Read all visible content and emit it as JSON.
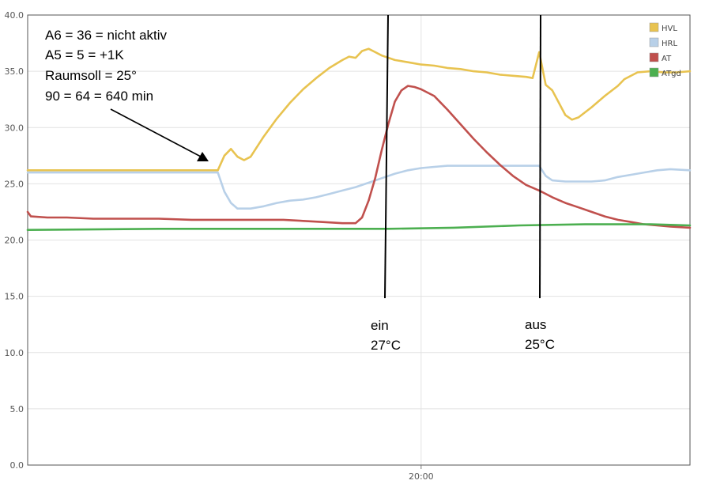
{
  "chart_data": {
    "type": "line",
    "title": "",
    "xlabel": "",
    "ylabel": "",
    "ylim": [
      0,
      40
    ],
    "yticks": [
      "0.0",
      "5.0",
      "10.0",
      "15.0",
      "20.0",
      "25.0",
      "30.0",
      "35.0",
      "40.0"
    ],
    "xticks": [
      {
        "label": "20:00",
        "t": 0
      }
    ],
    "time_unit": "minutes relative to 20:00",
    "xlim": [
      -120,
      82
    ],
    "grid": true,
    "legend_position": "top-right",
    "series": [
      {
        "name": "HVL",
        "color": "#e8c350",
        "points": [
          [
            -120,
            26.2
          ],
          [
            -62,
            26.2
          ],
          [
            -60,
            27.5
          ],
          [
            -58,
            28.1
          ],
          [
            -56,
            27.4
          ],
          [
            -54,
            27.1
          ],
          [
            -52,
            27.4
          ],
          [
            -48,
            29.2
          ],
          [
            -44,
            30.8
          ],
          [
            -40,
            32.2
          ],
          [
            -36,
            33.4
          ],
          [
            -32,
            34.4
          ],
          [
            -28,
            35.3
          ],
          [
            -24,
            36.0
          ],
          [
            -22,
            36.3
          ],
          [
            -20,
            36.2
          ],
          [
            -18,
            36.8
          ],
          [
            -16,
            37.0
          ],
          [
            -14,
            36.7
          ],
          [
            -12,
            36.4
          ],
          [
            -8,
            36.0
          ],
          [
            -4,
            35.8
          ],
          [
            0,
            35.6
          ],
          [
            4,
            35.5
          ],
          [
            8,
            35.3
          ],
          [
            12,
            35.2
          ],
          [
            16,
            35.0
          ],
          [
            20,
            34.9
          ],
          [
            24,
            34.7
          ],
          [
            28,
            34.6
          ],
          [
            32,
            34.5
          ],
          [
            34,
            34.4
          ],
          [
            36,
            36.7
          ],
          [
            38,
            33.8
          ],
          [
            40,
            33.3
          ],
          [
            44,
            31.1
          ],
          [
            46,
            30.7
          ],
          [
            48,
            30.9
          ],
          [
            52,
            31.8
          ],
          [
            56,
            32.8
          ],
          [
            60,
            33.7
          ],
          [
            62,
            34.3
          ],
          [
            66,
            34.9
          ],
          [
            70,
            35.0
          ],
          [
            74,
            34.9
          ],
          [
            78,
            34.9
          ],
          [
            82,
            35.0
          ]
        ]
      },
      {
        "name": "HRL",
        "color": "#b8d0e8",
        "points": [
          [
            -120,
            26.0
          ],
          [
            -62,
            26.0
          ],
          [
            -60,
            24.3
          ],
          [
            -58,
            23.3
          ],
          [
            -56,
            22.8
          ],
          [
            -52,
            22.8
          ],
          [
            -48,
            23.0
          ],
          [
            -44,
            23.3
          ],
          [
            -40,
            23.5
          ],
          [
            -36,
            23.6
          ],
          [
            -32,
            23.8
          ],
          [
            -28,
            24.1
          ],
          [
            -24,
            24.4
          ],
          [
            -20,
            24.7
          ],
          [
            -16,
            25.1
          ],
          [
            -12,
            25.5
          ],
          [
            -8,
            25.9
          ],
          [
            -4,
            26.2
          ],
          [
            0,
            26.4
          ],
          [
            4,
            26.5
          ],
          [
            8,
            26.6
          ],
          [
            36,
            26.6
          ],
          [
            38,
            25.7
          ],
          [
            40,
            25.3
          ],
          [
            44,
            25.2
          ],
          [
            48,
            25.2
          ],
          [
            52,
            25.2
          ],
          [
            56,
            25.3
          ],
          [
            60,
            25.6
          ],
          [
            64,
            25.8
          ],
          [
            68,
            26.0
          ],
          [
            72,
            26.2
          ],
          [
            76,
            26.3
          ],
          [
            82,
            26.2
          ]
        ]
      },
      {
        "name": "AT",
        "color": "#c0504d",
        "points": [
          [
            -120,
            22.5
          ],
          [
            -119,
            22.1
          ],
          [
            -114,
            22.0
          ],
          [
            -108,
            22.0
          ],
          [
            -100,
            21.9
          ],
          [
            -90,
            21.9
          ],
          [
            -80,
            21.9
          ],
          [
            -70,
            21.8
          ],
          [
            -60,
            21.8
          ],
          [
            -50,
            21.8
          ],
          [
            -42,
            21.8
          ],
          [
            -36,
            21.7
          ],
          [
            -30,
            21.6
          ],
          [
            -24,
            21.5
          ],
          [
            -20,
            21.5
          ],
          [
            -18,
            22.0
          ],
          [
            -16,
            23.5
          ],
          [
            -14,
            25.5
          ],
          [
            -12,
            28.0
          ],
          [
            -10,
            30.3
          ],
          [
            -8,
            32.3
          ],
          [
            -6,
            33.3
          ],
          [
            -4,
            33.7
          ],
          [
            -2,
            33.6
          ],
          [
            0,
            33.4
          ],
          [
            4,
            32.8
          ],
          [
            8,
            31.6
          ],
          [
            12,
            30.3
          ],
          [
            16,
            29.0
          ],
          [
            20,
            27.8
          ],
          [
            24,
            26.7
          ],
          [
            28,
            25.7
          ],
          [
            32,
            24.9
          ],
          [
            36,
            24.4
          ],
          [
            40,
            23.8
          ],
          [
            44,
            23.3
          ],
          [
            48,
            22.9
          ],
          [
            52,
            22.5
          ],
          [
            56,
            22.1
          ],
          [
            60,
            21.8
          ],
          [
            64,
            21.6
          ],
          [
            68,
            21.4
          ],
          [
            72,
            21.3
          ],
          [
            76,
            21.2
          ],
          [
            82,
            21.1
          ]
        ]
      },
      {
        "name": "ATgd",
        "color": "#4caf50",
        "points": [
          [
            -120,
            20.9
          ],
          [
            -80,
            21.0
          ],
          [
            -40,
            21.0
          ],
          [
            -10,
            21.0
          ],
          [
            10,
            21.1
          ],
          [
            30,
            21.3
          ],
          [
            50,
            21.4
          ],
          [
            70,
            21.4
          ],
          [
            82,
            21.3
          ]
        ]
      }
    ],
    "annotations": {
      "textbox": [
        "A6 = 36 = nicht aktiv",
        "A5 = 5 = +1K",
        "Raumsoll = 25°",
        "90 = 64 = 640 min"
      ],
      "marker_on": [
        "ein",
        "27°C"
      ],
      "marker_off": [
        "aus",
        "25°C"
      ]
    }
  }
}
